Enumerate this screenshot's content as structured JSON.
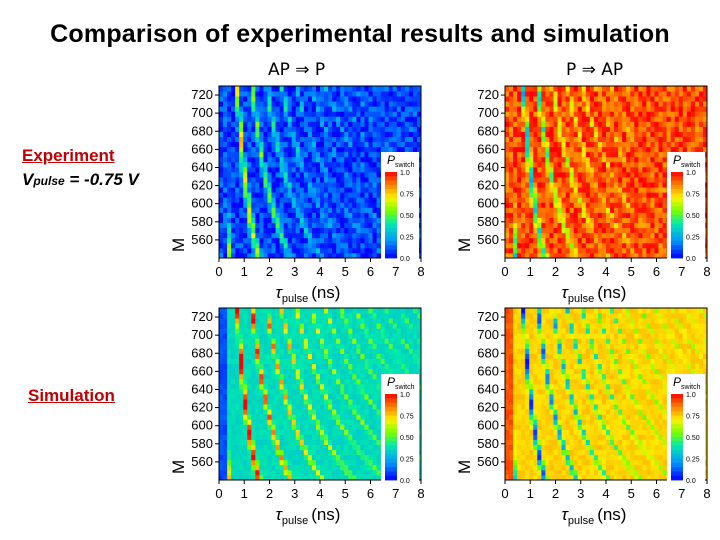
{
  "title": "Comparison of experimental results and simulation",
  "columns": {
    "left": "AP ⇒ P",
    "right": "P ⇒ AP"
  },
  "rows": {
    "experiment_label": "Experiment",
    "vpulse_symbol": "V",
    "vpulse_sub": "pulse",
    "vpulse_value": " = -0.75 V",
    "simulation_label": "Simulation"
  },
  "colors": {
    "red": "#c00000",
    "gradient": [
      "#0000ff",
      "#00aaff",
      "#00ff88",
      "#ffff00",
      "#ff8800",
      "#ff0000"
    ]
  },
  "chart_data": [
    {
      "type": "heatmap",
      "title": "AP ⇒ P (Experiment)",
      "xlabel_symbol": "τ",
      "xlabel_sub": "pulse",
      "xlabel_unit": "(ns)",
      "ylabel": "M",
      "xticks": [
        "0",
        "1",
        "2",
        "3",
        "4",
        "5",
        "6",
        "7",
        "8"
      ],
      "yticks": [
        "560",
        "580",
        "600",
        "620",
        "640",
        "660",
        "680",
        "700",
        "720"
      ],
      "xlim": [
        0,
        8
      ],
      "ylim": [
        540,
        730
      ],
      "colorbar": {
        "label": "P",
        "label_sub": "switch",
        "ticks": [
          "1.0",
          "0.75",
          "0.50",
          "0.25",
          "0.0"
        ]
      },
      "pattern": "fringes fading toward zero switching at large tau"
    },
    {
      "type": "heatmap",
      "title": "P ⇒ AP (Experiment)",
      "xlabel_symbol": "τ",
      "xlabel_sub": "pulse",
      "xlabel_unit": "(ns)",
      "ylabel": "M",
      "xticks": [
        "0",
        "1",
        "2",
        "3",
        "4",
        "5",
        "6",
        "7",
        "8"
      ],
      "yticks": [
        "560",
        "580",
        "600",
        "620",
        "640",
        "660",
        "680",
        "700",
        "720"
      ],
      "xlim": [
        0,
        8
      ],
      "ylim": [
        540,
        730
      ],
      "colorbar": {
        "label": "P",
        "label_sub": "switch",
        "ticks": [
          "1.0",
          "0.75",
          "0.50",
          "0.25",
          "0.0"
        ]
      },
      "pattern": "fringes approaching full switching at large tau"
    },
    {
      "type": "heatmap",
      "title": "AP ⇒ P (Simulation)",
      "xlabel_symbol": "τ",
      "xlabel_sub": "pulse",
      "xlabel_unit": "(ns)",
      "ylabel": "M",
      "xticks": [
        "0",
        "1",
        "2",
        "3",
        "4",
        "5",
        "6",
        "7",
        "8"
      ],
      "yticks": [
        "560",
        "580",
        "600",
        "620",
        "640",
        "660",
        "680",
        "700",
        "720"
      ],
      "xlim": [
        0,
        8
      ],
      "ylim": [
        540,
        730
      ],
      "colorbar": {
        "label": "P",
        "label_sub": "switch",
        "ticks": [
          "1.0",
          "0.75",
          "0.50",
          "0.25",
          "0.0"
        ]
      },
      "pattern": "sharp fringes, background switching around 0.3 to 0.5"
    },
    {
      "type": "heatmap",
      "title": "P ⇒ AP (Simulation)",
      "xlabel_symbol": "τ",
      "xlabel_sub": "pulse",
      "xlabel_unit": "(ns)",
      "ylabel": "M",
      "xticks": [
        "0",
        "1",
        "2",
        "3",
        "4",
        "5",
        "6",
        "7",
        "8"
      ],
      "yticks": [
        "560",
        "580",
        "600",
        "620",
        "640",
        "660",
        "680",
        "700",
        "720"
      ],
      "xlim": [
        0,
        8
      ],
      "ylim": [
        540,
        730
      ],
      "colorbar": {
        "label": "P",
        "label_sub": "switch",
        "ticks": [
          "1.0",
          "0.75",
          "0.50",
          "0.25",
          "0.0"
        ]
      },
      "pattern": "sharp fringes, background switching around 0.6 to 0.9"
    }
  ]
}
